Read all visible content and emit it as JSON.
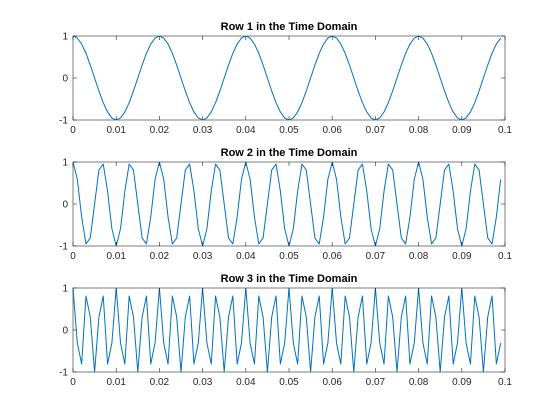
{
  "chart_data": [
    {
      "type": "line",
      "title": "Row 1 in the Time Domain",
      "xlabel": "",
      "ylabel": "",
      "xlim": [
        0,
        0.1
      ],
      "ylim": [
        -1,
        1
      ],
      "xticks": [
        0,
        0.01,
        0.02,
        0.03,
        0.04,
        0.05,
        0.06,
        0.07,
        0.08,
        0.09,
        0.1
      ],
      "xtick_labels": [
        "0",
        "0.01",
        "0.02",
        "0.03",
        "0.04",
        "0.05",
        "0.06",
        "0.07",
        "0.08",
        "0.09",
        "0.1"
      ],
      "yticks": [
        -1,
        0,
        1
      ],
      "ytick_labels": [
        "-1",
        "0",
        "1"
      ],
      "grid": false,
      "series": [
        {
          "color": "#0072BD",
          "function": "cos",
          "frequency_hz": 50,
          "sample_rate_hz": 1000,
          "t_start": 0,
          "t_end": 0.099
        }
      ]
    },
    {
      "type": "line",
      "title": "Row 2 in the Time Domain",
      "xlabel": "",
      "ylabel": "",
      "xlim": [
        0,
        0.1
      ],
      "ylim": [
        -1,
        1
      ],
      "xticks": [
        0,
        0.01,
        0.02,
        0.03,
        0.04,
        0.05,
        0.06,
        0.07,
        0.08,
        0.09,
        0.1
      ],
      "xtick_labels": [
        "0",
        "0.01",
        "0.02",
        "0.03",
        "0.04",
        "0.05",
        "0.06",
        "0.07",
        "0.08",
        "0.09",
        "0.1"
      ],
      "yticks": [
        -1,
        0,
        1
      ],
      "ytick_labels": [
        "-1",
        "0",
        "1"
      ],
      "grid": false,
      "series": [
        {
          "color": "#0072BD",
          "function": "cos",
          "frequency_hz": 150,
          "sample_rate_hz": 1000,
          "t_start": 0,
          "t_end": 0.099
        }
      ]
    },
    {
      "type": "line",
      "title": "Row 3 in the Time Domain",
      "xlabel": "",
      "ylabel": "",
      "xlim": [
        0,
        0.1
      ],
      "ylim": [
        -1,
        1
      ],
      "xticks": [
        0,
        0.01,
        0.02,
        0.03,
        0.04,
        0.05,
        0.06,
        0.07,
        0.08,
        0.09,
        0.1
      ],
      "xtick_labels": [
        "0",
        "0.01",
        "0.02",
        "0.03",
        "0.04",
        "0.05",
        "0.06",
        "0.07",
        "0.08",
        "0.09",
        "0.1"
      ],
      "yticks": [
        -1,
        0,
        1
      ],
      "ytick_labels": [
        "-1",
        "0",
        "1"
      ],
      "grid": false,
      "series": [
        {
          "color": "#0072BD",
          "function": "cos",
          "frequency_hz": 300,
          "sample_rate_hz": 1000,
          "t_start": 0,
          "t_end": 0.099
        }
      ]
    }
  ]
}
